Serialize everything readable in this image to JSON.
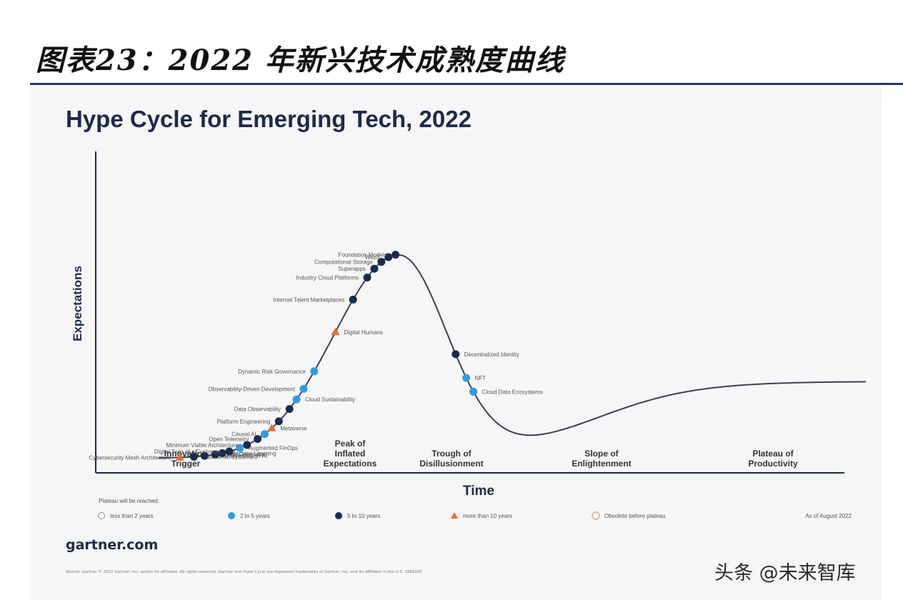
{
  "header": {
    "title": "图表23：2022 年新兴技术成熟度曲线"
  },
  "chart_data": {
    "type": "line",
    "title": "Hype Cycle for Emerging Tech, 2022",
    "xlabel": "Time",
    "ylabel": "Expectations",
    "phases": [
      "Innovation Trigger",
      "Peak of Inflated Expectations",
      "Trough of Disillusionment",
      "Slope of Enlightenment",
      "Plateau of Productivity"
    ],
    "legend_title": "Plateau will be reached:",
    "legend": [
      {
        "label": "less than 2 years",
        "symbol": "circle-open"
      },
      {
        "label": "2 to 5 years",
        "symbol": "circle-light"
      },
      {
        "label": "5 to 10 years",
        "symbol": "circle-dark"
      },
      {
        "label": "more than 10 years",
        "symbol": "triangle"
      },
      {
        "label": "Obsolete before plateau",
        "symbol": "crossed-circle"
      }
    ],
    "as_of": "As of August 2022",
    "technologies": [
      {
        "name": "Cybersecurity Mesh Architecture",
        "position": 0.03,
        "plateau": "more than 10 years"
      },
      {
        "name": "Autonomic Systems",
        "position": 0.05,
        "plateau": "5 to 10 years"
      },
      {
        "name": "Generative Design AI",
        "position": 0.065,
        "plateau": "5 to 10 years"
      },
      {
        "name": "Code Generation",
        "position": 0.08,
        "plateau": "5 to 10 years"
      },
      {
        "name": "Machine Learning",
        "position": 0.09,
        "plateau": "5 to 10 years"
      },
      {
        "name": "Digital Twin of a Customer",
        "position": 0.1,
        "plateau": "5 to 10 years"
      },
      {
        "name": "Augmented FinOps",
        "position": 0.115,
        "plateau": "2 to 5 years"
      },
      {
        "name": "Minimum Viable Architecture",
        "position": 0.125,
        "plateau": "5 to 10 years"
      },
      {
        "name": "Open Telemetry",
        "position": 0.14,
        "plateau": "5 to 10 years"
      },
      {
        "name": "Causal AI",
        "position": 0.15,
        "plateau": "2 to 5 years"
      },
      {
        "name": "Metaverse",
        "position": 0.16,
        "plateau": "more than 10 years"
      },
      {
        "name": "Platform Engineering",
        "position": 0.17,
        "plateau": "5 to 10 years"
      },
      {
        "name": "Data Observability",
        "position": 0.185,
        "plateau": "5 to 10 years"
      },
      {
        "name": "Cloud Sustainability",
        "position": 0.195,
        "plateau": "2 to 5 years"
      },
      {
        "name": "Observability-Driven Development",
        "position": 0.205,
        "plateau": "2 to 5 years"
      },
      {
        "name": "Dynamic Risk Governance",
        "position": 0.22,
        "plateau": "2 to 5 years"
      },
      {
        "name": "Digital Humans",
        "position": 0.25,
        "plateau": "more than 10 years"
      },
      {
        "name": "Internal Talent Marketplaces",
        "position": 0.275,
        "plateau": "5 to 10 years"
      },
      {
        "name": "Industry Cloud Platforms",
        "position": 0.295,
        "plateau": "5 to 10 years"
      },
      {
        "name": "Superapps",
        "position": 0.305,
        "plateau": "5 to 10 years"
      },
      {
        "name": "Computational Storage",
        "position": 0.315,
        "plateau": "5 to 10 years"
      },
      {
        "name": "Web3",
        "position": 0.325,
        "plateau": "5 to 10 years"
      },
      {
        "name": "Foundation Models",
        "position": 0.335,
        "plateau": "5 to 10 years"
      },
      {
        "name": "Decentralized Identity",
        "position": 0.42,
        "plateau": "5 to 10 years"
      },
      {
        "name": "NFT",
        "position": 0.435,
        "plateau": "2 to 5 years"
      },
      {
        "name": "Cloud Data Ecosystems",
        "position": 0.445,
        "plateau": "2 to 5 years"
      }
    ],
    "colors": {
      "curve": "#3a4050",
      "axis": "#1e2a48",
      "title": "#1e2a48",
      "two_to_five": "#2f9be3",
      "five_to_ten": "#1c2a4e",
      "over_ten": "#ea6a3a",
      "obsolete": "#e0a0a0"
    }
  },
  "footer": {
    "url": "gartner.com",
    "copyright": "Source: Gartner\n© 2022 Gartner, Inc. and/or its affiliates. All rights reserved. Gartner and Hype Cycle are registered trademarks of Gartner, Inc. and its affiliates in the U.S. 1869100",
    "watermark": "头条 @未来智库"
  }
}
